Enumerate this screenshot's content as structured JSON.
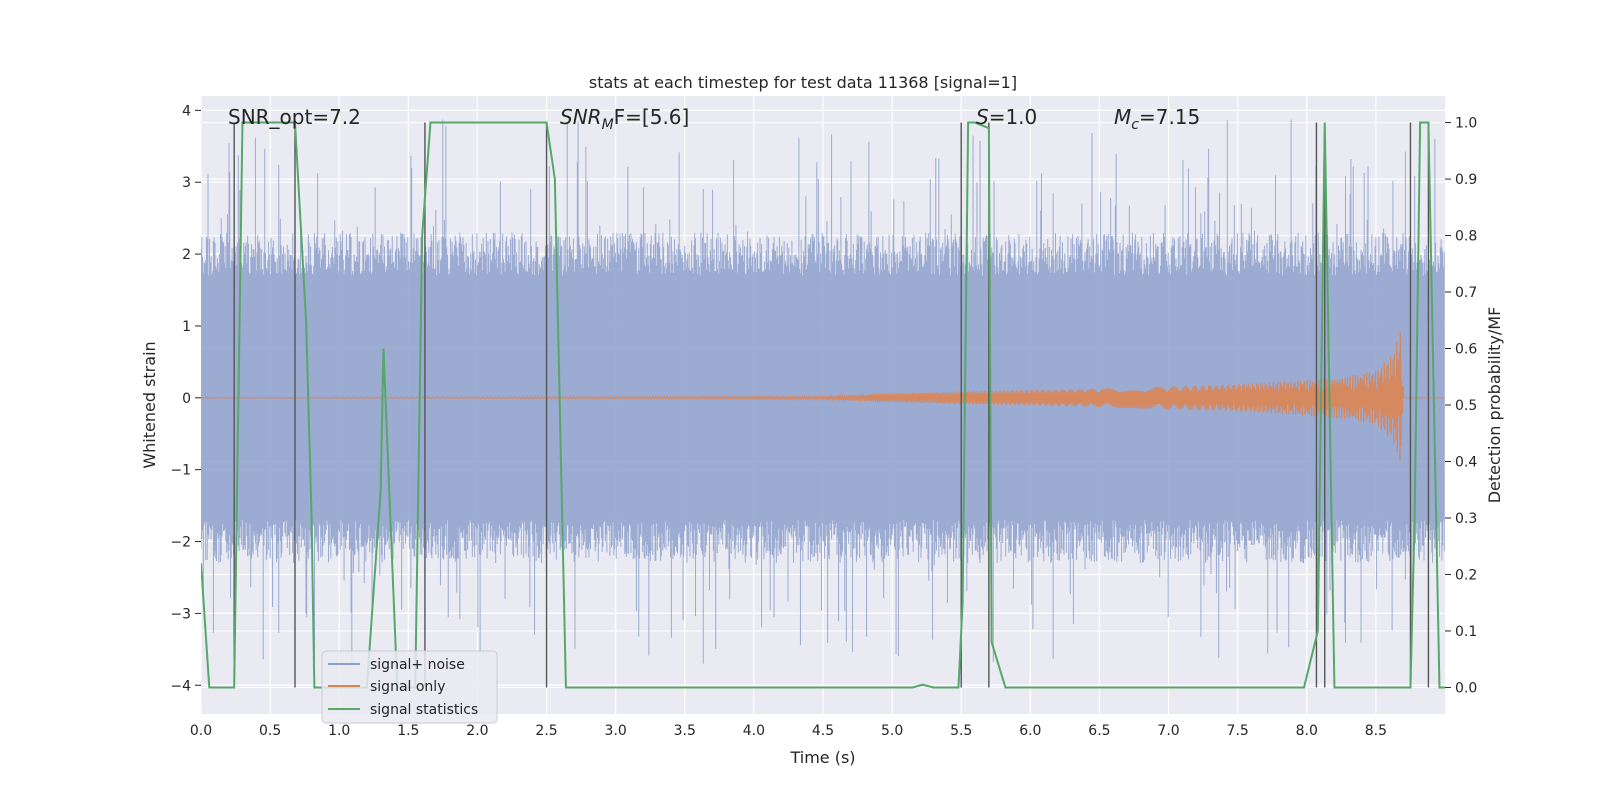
{
  "chart_data": {
    "type": "line",
    "title": "stats at each timestep for test data 11368 [signal=1]",
    "xlabel": "Time (s)",
    "ylabel": "Whitened strain",
    "ylabel_right": "Detection probability/MF",
    "xlim": [
      0.0,
      9.0
    ],
    "ylim": [
      -4.4,
      4.2
    ],
    "ylim_right": [
      -0.047,
      1.047
    ],
    "grid": true,
    "x_ticks": [
      "0.0",
      "0.5",
      "1.0",
      "1.5",
      "2.0",
      "2.5",
      "3.0",
      "3.5",
      "4.0",
      "4.5",
      "5.0",
      "5.5",
      "6.0",
      "6.5",
      "7.0",
      "7.5",
      "8.0",
      "8.5"
    ],
    "y_ticks": [
      "−4",
      "−3",
      "−2",
      "−1",
      "0",
      "1",
      "2",
      "3",
      "4"
    ],
    "y_ticks_right": [
      "0.0",
      "0.1",
      "0.2",
      "0.3",
      "0.4",
      "0.5",
      "0.6",
      "0.7",
      "0.8",
      "0.9",
      "1.0"
    ],
    "annotations": {
      "snr_opt": "SNR_opt=7.2",
      "snr_mf_name": "SNR",
      "snr_mf_sub": "M",
      "snr_mf_rest": "F=[5.6]",
      "s_name": "S",
      "s_rest": "=1.0",
      "mc_name": "M",
      "mc_sub": "c",
      "mc_rest": "=7.15"
    },
    "legend": {
      "position": "lower-left",
      "entries": [
        "signal+ noise",
        "signal only",
        "signal statistics"
      ]
    },
    "series": [
      {
        "name": "signal+ noise",
        "color": "#8da0cb",
        "kind": "noise",
        "amplitude_envelope_upper": 2.0,
        "amplitude_envelope_lower": -2.0,
        "peak_range": [
          -3.7,
          3.9
        ]
      },
      {
        "name": "signal only",
        "color": "#dd8452",
        "kind": "chirp",
        "envelope_x": [
          0.0,
          4.5,
          5.0,
          5.5,
          6.0,
          6.5,
          7.0,
          7.5,
          8.0,
          8.3,
          8.5,
          8.62,
          8.68,
          8.7,
          9.0
        ],
        "envelope_y": [
          0.0,
          0.02,
          0.06,
          0.09,
          0.11,
          0.13,
          0.16,
          0.19,
          0.25,
          0.3,
          0.38,
          0.6,
          0.95,
          0.0,
          0.0
        ]
      },
      {
        "name": "signal statistics",
        "color": "#55a868",
        "axis": "right",
        "x": [
          0.0,
          0.06,
          0.15,
          0.24,
          0.3,
          0.68,
          0.76,
          0.8,
          0.82,
          1.2,
          1.3,
          1.32,
          1.42,
          1.55,
          1.6,
          1.66,
          2.5,
          2.56,
          2.64,
          5.05,
          5.15,
          5.22,
          5.3,
          5.48,
          5.51,
          5.55,
          5.6,
          5.7,
          5.72,
          5.82,
          7.98,
          8.08,
          8.13,
          8.2,
          8.75,
          8.78,
          8.82,
          8.88,
          8.96,
          9.0
        ],
        "y": [
          0.22,
          0.0,
          0.0,
          0.0,
          1.0,
          1.0,
          0.65,
          0.3,
          0.0,
          0.0,
          0.35,
          0.6,
          0.0,
          0.0,
          0.8,
          1.0,
          1.0,
          0.9,
          0.0,
          0.0,
          0.0,
          0.005,
          0.0,
          0.0,
          0.15,
          1.0,
          1.0,
          0.99,
          0.08,
          0.0,
          0.0,
          0.1,
          1.0,
          0.0,
          0.0,
          0.3,
          1.0,
          1.0,
          0.0,
          0.0
        ]
      }
    ],
    "vertical_lines": [
      0.24,
      0.68,
      1.62,
      2.5,
      5.5,
      5.7,
      8.07,
      8.13,
      8.75,
      8.88
    ],
    "vertical_line_range": [
      0.0,
      1.0
    ]
  }
}
